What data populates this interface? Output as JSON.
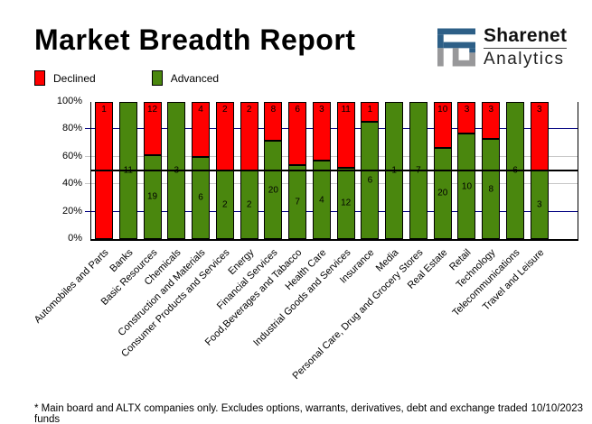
{
  "title": "Market Breadth Report",
  "logo": {
    "name": "Sharenet",
    "sub": "Analytics",
    "blue": "#2d5f87",
    "gray": "#98989a"
  },
  "legend": [
    {
      "label": "Declined",
      "color": "#ff0000"
    },
    {
      "label": "Advanced",
      "color": "#4a870e"
    }
  ],
  "chart_data": {
    "type": "bar",
    "stacked": true,
    "normalized": "percent_of_total",
    "title": "Market Breadth Report",
    "ylabel": "",
    "xlabel": "",
    "ylim": [
      0,
      100
    ],
    "yticks": [
      {
        "value": 0,
        "label": "0%"
      },
      {
        "value": 20,
        "label": "20%"
      },
      {
        "value": 40,
        "label": "40%"
      },
      {
        "value": 60,
        "label": "60%"
      },
      {
        "value": 80,
        "label": "80%"
      },
      {
        "value": 100,
        "label": "100%"
      }
    ],
    "gridlines": [
      {
        "y": 20,
        "color": "#000080"
      },
      {
        "y": 40,
        "color": "#c8c8c8"
      },
      {
        "y": 60,
        "color": "#c8c8c8"
      },
      {
        "y": 80,
        "color": "#000080"
      }
    ],
    "midline": {
      "y": 50,
      "color": "#000000"
    },
    "legend_position": "top-left",
    "categories": [
      "Automobiles and Parts",
      "Banks",
      "Basic Resources",
      "Chemicals",
      "Construction and Materials",
      "Consumer Products and Services",
      "Energy",
      "Financial Services",
      "Food,Beverages and Tabacco",
      "Health Care",
      "Industrial Goods and Services",
      "Insurance",
      "Media",
      "Personal Care, Drug and Grocery Stores",
      "Real Estate",
      "Retail",
      "Technology",
      "Telecommunications",
      "Travel and Leisure"
    ],
    "series": [
      {
        "name": "Declined",
        "color": "#ff0000",
        "values": [
          1,
          0,
          12,
          0,
          4,
          2,
          2,
          8,
          6,
          3,
          11,
          1,
          0,
          0,
          10,
          3,
          3,
          0,
          3
        ]
      },
      {
        "name": "Advanced",
        "color": "#4a870e",
        "values": [
          0,
          11,
          19,
          3,
          6,
          2,
          2,
          20,
          7,
          4,
          12,
          6,
          1,
          7,
          20,
          10,
          8,
          6,
          3
        ]
      }
    ]
  },
  "footer": {
    "note": "* Main board and ALTX companies only. Excludes options, warrants, derivatives, debt and exchange traded funds",
    "date": "10/10/2023"
  }
}
